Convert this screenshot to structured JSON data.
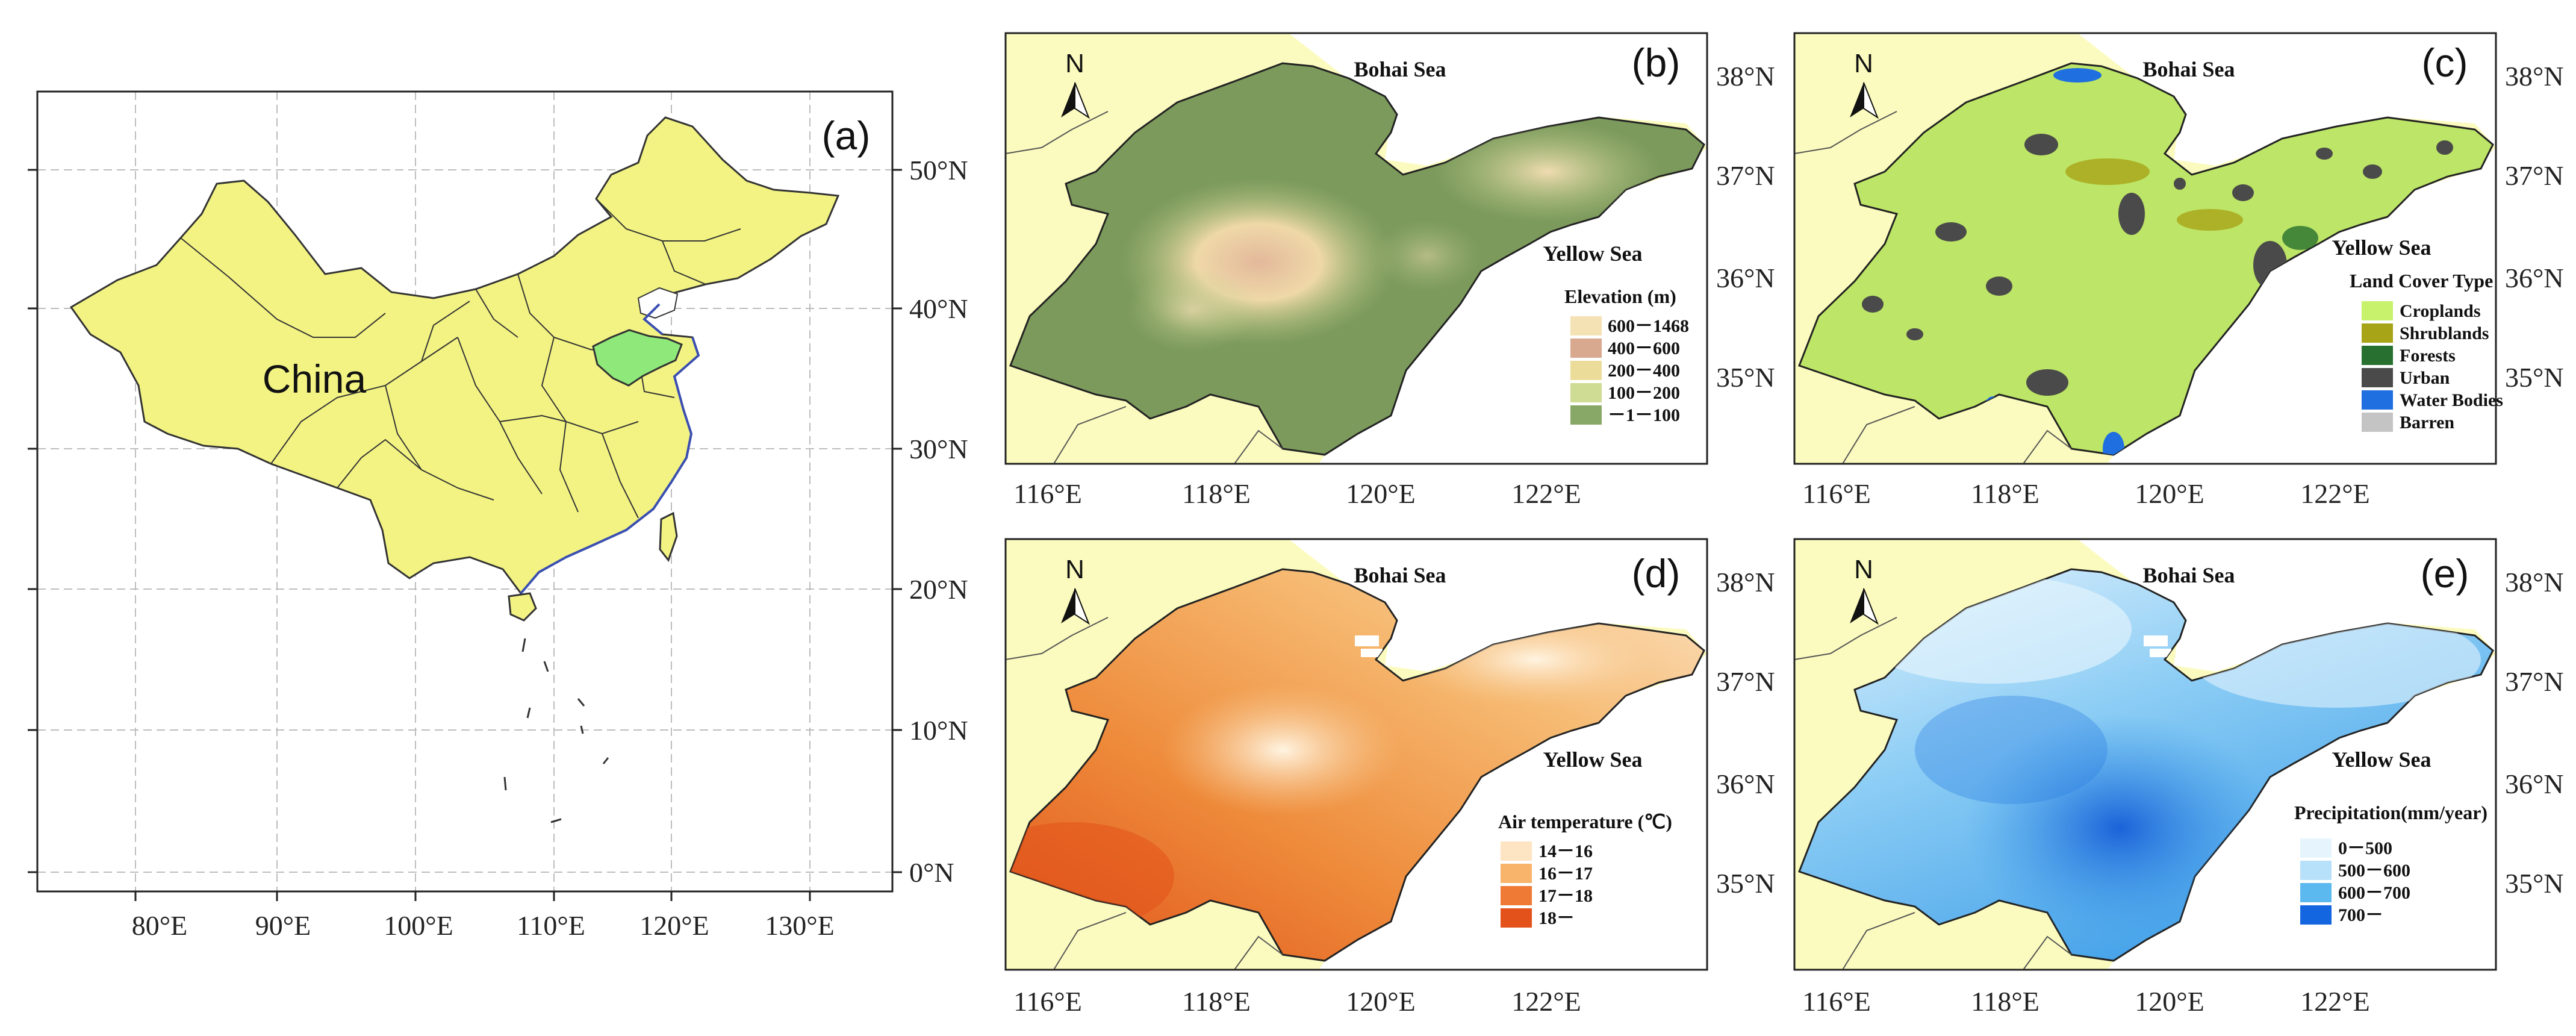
{
  "panels": {
    "a": {
      "label": "(a)",
      "country_label": "China",
      "lon_ticks": [
        "80°E",
        "90°E",
        "100°E",
        "110°E",
        "120°E",
        "130°E"
      ],
      "lat_ticks": [
        "50°N",
        "40°N",
        "30°N",
        "20°N",
        "10°N",
        "0°N"
      ],
      "colors": {
        "land": "#f3f384",
        "highlight": "#8fe87a",
        "coast": "#3a4fb0"
      }
    },
    "b": {
      "label": "(b)",
      "legend_title": "Elevation (m)",
      "legend": [
        {
          "label": "600－1468",
          "color": "#f5e2b4"
        },
        {
          "label": "400－600",
          "color": "#d8a98f"
        },
        {
          "label": "200－400",
          "color": "#ecdc9a"
        },
        {
          "label": "100－200",
          "color": "#cfdc94"
        },
        {
          "label": "－1－100",
          "color": "#87a866"
        }
      ],
      "fill": "#7c9a5c"
    },
    "c": {
      "label": "(c)",
      "legend_title": "Land Cover Type",
      "legend": [
        {
          "label": "Croplands",
          "color": "#c8f26b"
        },
        {
          "label": "Shrublands",
          "color": "#a8a418"
        },
        {
          "label": "Forests",
          "color": "#27702f"
        },
        {
          "label": "Urban",
          "color": "#4a4a4a"
        },
        {
          "label": "Water Bodies",
          "color": "#1f6fe0"
        },
        {
          "label": "Barren",
          "color": "#c4c4c4"
        }
      ],
      "fill": "#bde567"
    },
    "d": {
      "label": "(d)",
      "legend_title": "Air temperature (℃)",
      "legend": [
        {
          "label": "14－16",
          "color": "#fde4c2"
        },
        {
          "label": "16－17",
          "color": "#f7b46a"
        },
        {
          "label": "17－18",
          "color": "#ee7a35"
        },
        {
          "label": "18－",
          "color": "#e2521a"
        }
      ],
      "fill": "#f0973e"
    },
    "e": {
      "label": "(e)",
      "legend_title": "Precipitation(mm/year)",
      "legend": [
        {
          "label": "0－500",
          "color": "#e6f4fd"
        },
        {
          "label": "500－600",
          "color": "#b7e1fa"
        },
        {
          "label": "600－700",
          "color": "#5cb9f0"
        },
        {
          "label": "700－",
          "color": "#1466e0"
        }
      ],
      "fill": "#58b3ec"
    }
  },
  "region_map": {
    "sea_labels": [
      "Bohai Sea",
      "Yellow Sea"
    ],
    "north_label": "N",
    "lon_ticks": [
      "116°E",
      "118°E",
      "120°E",
      "122°E"
    ],
    "lat_ticks": [
      "38°N",
      "37°N",
      "36°N",
      "35°N"
    ],
    "colors": {
      "surround": "#fbfbbf",
      "water": "#ffffff"
    }
  }
}
